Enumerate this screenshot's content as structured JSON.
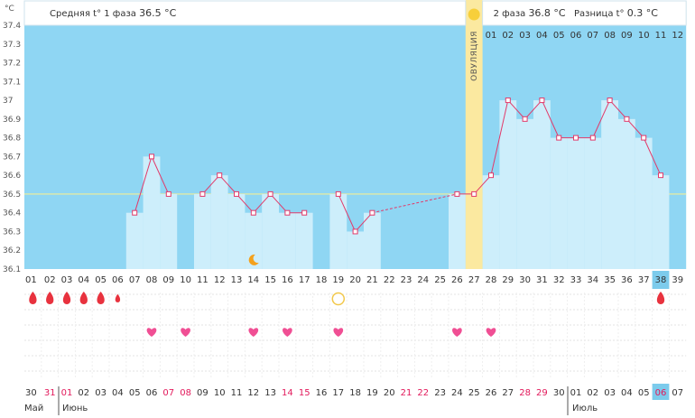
{
  "header": {
    "phase1_label": "Средняя t° 1 фаза",
    "phase1_value": "36.5 °C",
    "phase2_label": "2 фаза",
    "phase2_value": "36.8 °C",
    "diff_label": "Разница t°",
    "diff_value": "0.3 °C"
  },
  "ovulation_label": "ОВУЛЯЦИЯ",
  "months": {
    "may": "Май",
    "june": "Июнь",
    "july": "Июль"
  },
  "colors": {
    "background": "#8fd6f3",
    "bar_fill": "#cdeefb",
    "line": "#e23a6a",
    "coverline": "#f2ee96",
    "ovulation": "#fbe9a0",
    "highlight": "#7ccbec",
    "heart": "#f04f94",
    "drop": "#e8323e",
    "moon": "#f4a11c"
  },
  "icon_names": [
    "sun-icon",
    "moon-icon",
    "drop-icon",
    "heart-icon",
    "circle-icon"
  ],
  "chart_data": {
    "type": "bar",
    "title": "",
    "yunit": "°C",
    "ylim": [
      36.1,
      37.4
    ],
    "yticks": [
      "36.1",
      "36.2",
      "36.3",
      "36.4",
      "36.5",
      "36.6",
      "36.7",
      "36.8",
      "36.9",
      "37",
      "37.1",
      "37.2",
      "37.3",
      "37.4"
    ],
    "coverline": 36.5,
    "cycle_days": [
      "01",
      "02",
      "03",
      "04",
      "05",
      "06",
      "07",
      "08",
      "09",
      "10",
      "11",
      "12",
      "13",
      "14",
      "15",
      "16",
      "17",
      "18",
      "19",
      "20",
      "21",
      "22",
      "23",
      "24",
      "25",
      "26",
      "27",
      "28",
      "29",
      "30",
      "31",
      "32",
      "33",
      "34",
      "35",
      "36",
      "37",
      "38",
      "39"
    ],
    "phase2_day_numbers": [
      "01",
      "02",
      "03",
      "04",
      "05",
      "06",
      "07",
      "08",
      "09",
      "10",
      "11",
      "12"
    ],
    "dates": [
      "30",
      "31",
      "01",
      "02",
      "03",
      "04",
      "05",
      "06",
      "07",
      "08",
      "09",
      "10",
      "11",
      "12",
      "13",
      "14",
      "15",
      "16",
      "17",
      "18",
      "19",
      "20",
      "21",
      "22",
      "23",
      "24",
      "25",
      "26",
      "27",
      "28",
      "29",
      "30",
      "01",
      "02",
      "03",
      "04",
      "05",
      "06",
      "07"
    ],
    "red_date_indices": [
      1,
      2,
      8,
      9,
      15,
      16,
      22,
      23,
      29,
      30,
      37
    ],
    "highlight_day_index": 37,
    "ovulation_day_index": 26,
    "temperatures": [
      null,
      null,
      null,
      null,
      null,
      null,
      36.4,
      36.7,
      36.5,
      null,
      36.5,
      36.6,
      36.5,
      36.4,
      36.5,
      36.4,
      36.4,
      null,
      36.5,
      36.3,
      36.4,
      null,
      null,
      null,
      null,
      36.5,
      36.5,
      36.6,
      37.0,
      36.9,
      37.0,
      36.8,
      36.8,
      36.8,
      37.0,
      36.9,
      36.8,
      36.6,
      null
    ],
    "dashed_gaps": [
      [
        20,
        25
      ]
    ],
    "menstruation_days": [
      0,
      1,
      2,
      3,
      4,
      5,
      37
    ],
    "small_drop_days": [
      5
    ],
    "intercourse_days": [
      7,
      9,
      13,
      15,
      18,
      25,
      27
    ],
    "moon_days": [
      13
    ],
    "circle_days": [
      18
    ]
  }
}
